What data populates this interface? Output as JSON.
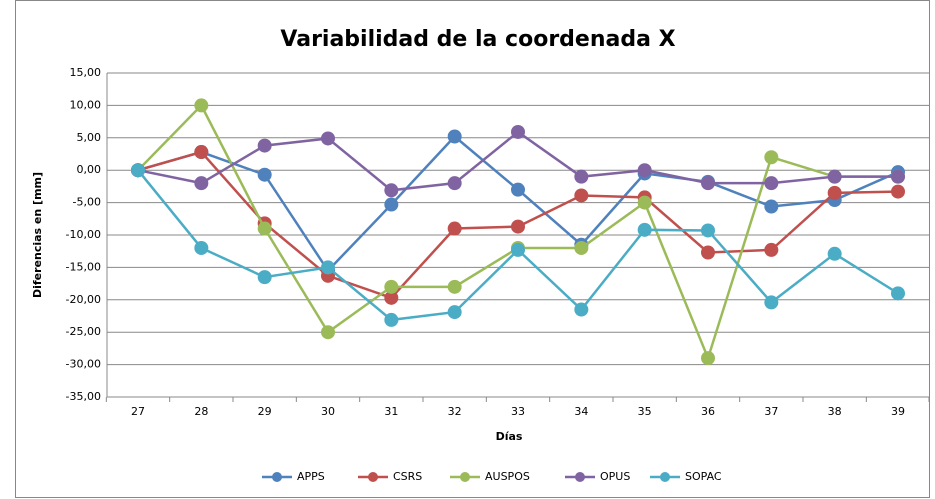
{
  "chart_data": {
    "type": "line",
    "title": "Variabilidad de la coordenada X",
    "x_label": "Días",
    "y_label": "Diferencias en [mm]",
    "categories": [
      "27",
      "28",
      "29",
      "30",
      "31",
      "32",
      "33",
      "34",
      "35",
      "36",
      "37",
      "38",
      "39"
    ],
    "ylim": [
      -35,
      15
    ],
    "yticks": [
      {
        "value": -35,
        "label": "-35,00"
      },
      {
        "value": -30,
        "label": "-30,00"
      },
      {
        "value": -25,
        "label": "-25,00"
      },
      {
        "value": -20,
        "label": "-20,00"
      },
      {
        "value": -15,
        "label": "-15,00"
      },
      {
        "value": -10,
        "label": "-10,00"
      },
      {
        "value": -5,
        "label": "-5,00"
      },
      {
        "value": 0,
        "label": "0,00"
      },
      {
        "value": 5,
        "label": "5,00"
      },
      {
        "value": 10,
        "label": "10,00"
      },
      {
        "value": 15,
        "label": "15,00"
      }
    ],
    "grid": true,
    "legend": "bottom",
    "series": [
      {
        "name": "APPS",
        "color": "#4f81bd",
        "values": [
          0,
          2.8,
          -0.7,
          -15.5,
          -5.3,
          5.2,
          -3,
          -11.5,
          -0.5,
          -1.8,
          -5.6,
          -4.6,
          -0.3
        ]
      },
      {
        "name": "CSRS",
        "color": "#c0504d",
        "values": [
          0,
          2.8,
          -8.2,
          -16.3,
          -19.7,
          -9,
          -8.7,
          -3.9,
          -4.2,
          -12.7,
          -12.3,
          -3.5,
          -3.3
        ]
      },
      {
        "name": "AUSPOS",
        "color": "#9bbb59",
        "values": [
          0,
          10,
          -9,
          -25,
          -18,
          -18,
          -12,
          -12,
          -5,
          -29,
          2,
          -1,
          -1
        ]
      },
      {
        "name": "OPUS",
        "color": "#8064a2",
        "values": [
          0,
          -2,
          3.8,
          4.9,
          -3.1,
          -2,
          5.9,
          -1,
          0,
          -2,
          -2,
          -1,
          -1
        ]
      },
      {
        "name": "SOPAC",
        "color": "#4bacc6",
        "values": [
          0,
          -12,
          -16.5,
          -15,
          -23.1,
          -21.9,
          -12.3,
          -21.5,
          -9.2,
          -9.3,
          -20.4,
          -12.9,
          -19
        ]
      }
    ]
  }
}
